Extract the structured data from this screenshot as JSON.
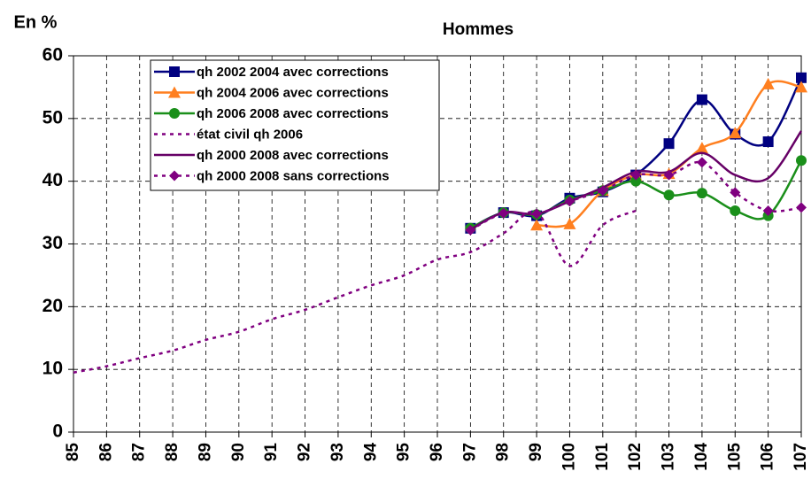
{
  "chart_data": {
    "type": "line",
    "title": "Hommes",
    "y_label": "En %",
    "x": [
      85,
      86,
      87,
      88,
      89,
      90,
      91,
      92,
      93,
      94,
      95,
      96,
      97,
      98,
      99,
      100,
      101,
      102,
      103,
      104,
      105,
      106,
      107
    ],
    "xlim": [
      85,
      107
    ],
    "xticks": [
      85,
      86,
      87,
      88,
      89,
      90,
      91,
      92,
      93,
      94,
      95,
      96,
      97,
      98,
      99,
      100,
      101,
      102,
      103,
      104,
      105,
      106,
      107
    ],
    "ylim": [
      0,
      60
    ],
    "yticks": [
      0,
      10,
      20,
      30,
      40,
      50,
      60
    ],
    "grid": true,
    "legend": "upper left",
    "series": [
      {
        "name": "qh 2002 2004 avec corrections",
        "color": "#000080",
        "marker": "square",
        "dashed": false,
        "values": [
          null,
          null,
          null,
          null,
          null,
          null,
          null,
          null,
          null,
          null,
          null,
          null,
          32.5,
          35,
          34.5,
          37.3,
          38.3,
          41,
          46,
          53,
          47.5,
          46.3,
          56.5
        ]
      },
      {
        "name": "qh 2004 2006 avec corrections",
        "color": "#ff7f1f",
        "marker": "triangle",
        "dashed": false,
        "values": [
          null,
          null,
          null,
          null,
          null,
          null,
          null,
          null,
          null,
          null,
          null,
          null,
          null,
          null,
          33,
          33.2,
          38.5,
          41,
          41.2,
          45.3,
          47.7,
          55.5,
          55
        ]
      },
      {
        "name": "qh 2006 2008 avec corrections",
        "color": "#1a8f1a",
        "marker": "circle",
        "dashed": false,
        "values": [
          null,
          null,
          null,
          null,
          null,
          null,
          null,
          null,
          null,
          null,
          null,
          null,
          32.5,
          35,
          34.7,
          37,
          38.5,
          40,
          37.8,
          38.1,
          35.3,
          34.5,
          43.3
        ]
      },
      {
        "name": "état civil qh 2006",
        "color": "#800080",
        "marker": "none",
        "dashed": true,
        "values": [
          9.5,
          10.5,
          11.8,
          13,
          14.7,
          16,
          18,
          19.5,
          21.5,
          23.4,
          25,
          27.5,
          28.7,
          31.7,
          35,
          26.5,
          33,
          35.3,
          null,
          null,
          null,
          null,
          null
        ]
      },
      {
        "name": "qh 2000 2008 avec corrections",
        "color": "#660066",
        "marker": "none",
        "dashed": false,
        "values": [
          null,
          null,
          null,
          null,
          null,
          null,
          null,
          null,
          null,
          null,
          null,
          null,
          32.3,
          35,
          34.8,
          36.8,
          39,
          41.5,
          41.5,
          44.5,
          41,
          40.5,
          48
        ]
      },
      {
        "name": "qh 2000 2008 sans corrections",
        "color": "#800080",
        "marker": "diamond",
        "dashed": true,
        "values": [
          null,
          null,
          null,
          null,
          null,
          null,
          null,
          null,
          null,
          null,
          null,
          null,
          32.2,
          34.9,
          34.8,
          36.8,
          38.5,
          41,
          41,
          43,
          38.2,
          35.3,
          35.8
        ]
      }
    ]
  }
}
